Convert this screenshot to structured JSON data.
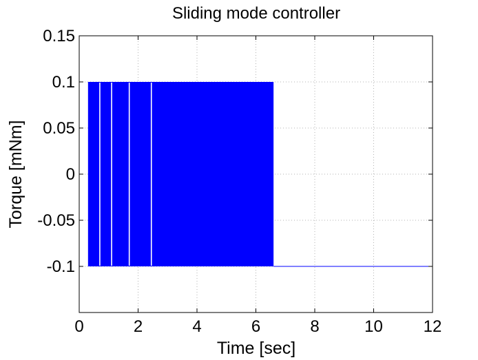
{
  "chart_data": {
    "type": "line",
    "title": "Sliding mode controller",
    "xlabel": "Time [sec]",
    "ylabel": "Torque [mNm]",
    "xlim": [
      0,
      12
    ],
    "ylim": [
      -0.15,
      0.15
    ],
    "x_ticks": [
      "0",
      "2",
      "4",
      "6",
      "8",
      "10",
      "12"
    ],
    "y_ticks": [
      "0.15",
      "0.1",
      "0.05",
      "0",
      "-0.05",
      "-0.1"
    ],
    "x_tick_values": [
      0,
      2,
      4,
      6,
      8,
      10,
      12
    ],
    "y_tick_values": [
      0.15,
      0.1,
      0.05,
      0,
      -0.05,
      -0.1
    ],
    "grid": true,
    "series": [
      {
        "color": "#0000ff",
        "description": "switching control signal oscillating between 0.1 and -0.1",
        "switching_interval": [
          0.3,
          6.6
        ],
        "gaps_at": [
          0.7,
          1.1,
          1.7,
          2.45
        ],
        "high": 0.1,
        "low": -0.1,
        "steady_after": {
          "x": [
            6.6,
            12
          ],
          "y": -0.1
        }
      }
    ]
  }
}
